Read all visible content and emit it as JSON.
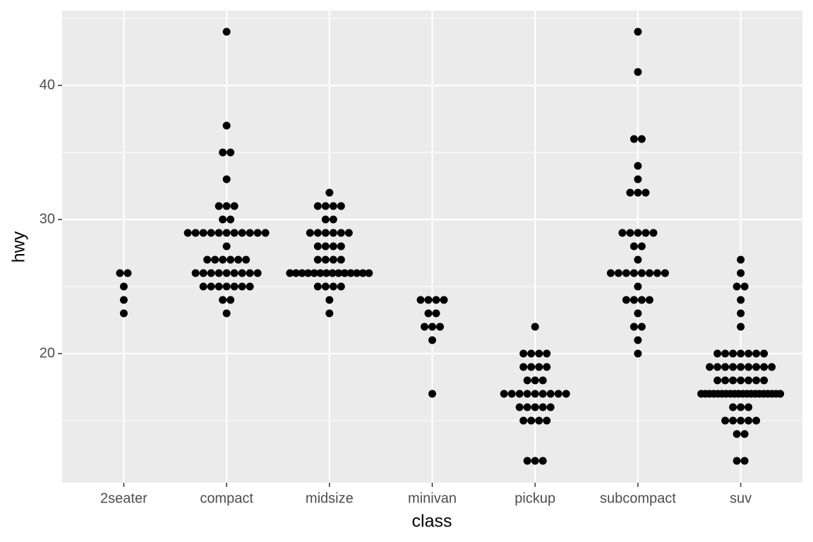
{
  "chart_data": {
    "type": "beeswarm",
    "x_label": "class",
    "y_label": "hwy",
    "categories": [
      "2seater",
      "compact",
      "midsize",
      "minivan",
      "pickup",
      "subcompact",
      "suv"
    ],
    "values": [
      [
        26,
        24,
        23,
        26,
        25
      ],
      [
        44,
        37,
        35,
        35,
        33,
        31,
        31,
        31,
        30,
        30,
        29,
        29,
        29,
        29,
        29,
        29,
        29,
        29,
        29,
        29,
        29,
        28,
        27,
        27,
        27,
        27,
        27,
        27,
        26,
        26,
        26,
        26,
        26,
        26,
        26,
        26,
        26,
        25,
        25,
        25,
        25,
        25,
        25,
        25,
        24,
        24,
        23
      ],
      [
        32,
        31,
        31,
        31,
        31,
        30,
        30,
        29,
        29,
        29,
        29,
        29,
        29,
        28,
        28,
        28,
        28,
        27,
        27,
        27,
        27,
        26,
        26,
        26,
        26,
        26,
        26,
        26,
        26,
        26,
        26,
        26,
        26,
        26,
        26,
        25,
        25,
        25,
        25,
        24,
        23
      ],
      [
        24,
        24,
        24,
        24,
        23,
        23,
        22,
        22,
        22,
        21,
        17
      ],
      [
        22,
        20,
        20,
        20,
        20,
        19,
        19,
        19,
        19,
        18,
        18,
        18,
        17,
        17,
        17,
        17,
        17,
        17,
        17,
        17,
        17,
        16,
        16,
        16,
        16,
        16,
        15,
        15,
        15,
        15,
        12,
        12,
        12
      ],
      [
        44,
        41,
        36,
        36,
        34,
        33,
        32,
        32,
        32,
        29,
        29,
        29,
        29,
        29,
        28,
        28,
        27,
        26,
        26,
        26,
        26,
        26,
        26,
        26,
        26,
        25,
        24,
        24,
        24,
        24,
        23,
        22,
        22,
        21,
        20
      ],
      [
        27,
        26,
        25,
        25,
        24,
        23,
        22,
        20,
        20,
        20,
        20,
        20,
        20,
        20,
        19,
        19,
        19,
        19,
        19,
        19,
        19,
        19,
        19,
        18,
        18,
        18,
        18,
        18,
        18,
        18,
        17,
        17,
        17,
        17,
        17,
        17,
        17,
        17,
        17,
        17,
        17,
        17,
        17,
        17,
        17,
        17,
        17,
        17,
        17,
        17,
        16,
        16,
        16,
        15,
        15,
        15,
        15,
        15,
        14,
        14,
        12,
        12
      ]
    ],
    "color": "#000000",
    "ylim": [
      10.37,
      45.58
    ],
    "yticks": [
      20,
      30,
      40
    ],
    "yminor": [
      15,
      25,
      35,
      45
    ],
    "grid": true
  }
}
